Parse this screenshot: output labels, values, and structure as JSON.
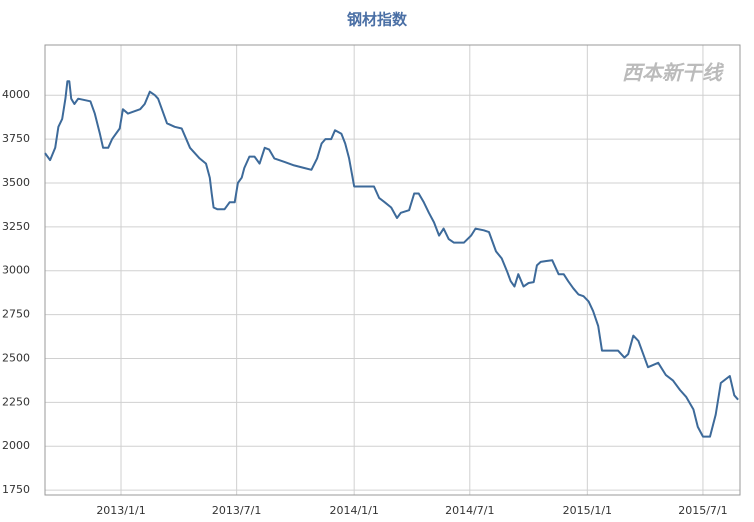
{
  "chart_data": {
    "type": "line",
    "title": "钢材指数",
    "watermark": "西本新干线",
    "x": [
      "2012/9/4",
      "2012/9/12",
      "2012/9/20",
      "2012/9/25",
      "2012/10/1",
      "2012/10/6",
      "2012/10/9",
      "2012/10/12",
      "2012/10/15",
      "2012/10/20",
      "2012/10/26",
      "2012/11/14",
      "2012/11/21",
      "2012/11/29",
      "2012/12/4",
      "2012/12/12",
      "2012/12/18",
      "2012/12/30",
      "2013/1/4",
      "2013/1/12",
      "2013/1/31",
      "2013/2/7",
      "2013/2/15",
      "2013/2/23",
      "2013/2/28",
      "2013/3/6",
      "2013/3/14",
      "2013/3/26",
      "2013/4/6",
      "2013/4/12",
      "2013/4/19",
      "2013/5/4",
      "2013/5/14",
      "2013/5/20",
      "2013/5/23",
      "2013/5/26",
      "2013/6/1",
      "2013/6/12",
      "2013/6/20",
      "2013/6/28",
      "2013/7/3",
      "2013/7/9",
      "2013/7/13",
      "2013/7/21",
      "2013/7/29",
      "2013/8/6",
      "2013/8/14",
      "2013/8/21",
      "2013/8/29",
      "2013/9/14",
      "2013/9/29",
      "2013/10/15",
      "2013/10/26",
      "2013/11/4",
      "2013/11/11",
      "2013/11/17",
      "2013/11/26",
      "2013/12/2",
      "2013/12/12",
      "2013/12/18",
      "2013/12/24",
      "2014/1/1",
      "2014/2/1",
      "2014/2/9",
      "2014/2/18",
      "2014/2/28",
      "2014/3/9",
      "2014/3/15",
      "2014/3/28",
      "2014/4/5",
      "2014/4/12",
      "2014/4/20",
      "2014/4/28",
      "2014/5/6",
      "2014/5/14",
      "2014/5/21",
      "2014/5/29",
      "2014/6/6",
      "2014/6/22",
      "2014/7/3",
      "2014/7/10",
      "2014/7/23",
      "2014/7/31",
      "2014/8/11",
      "2014/8/20",
      "2014/8/28",
      "2014/9/3",
      "2014/9/9",
      "2014/9/15",
      "2014/9/23",
      "2014/10/1",
      "2014/10/9",
      "2014/10/14",
      "2014/10/20",
      "2014/10/29",
      "2014/11/7",
      "2014/11/17",
      "2014/11/25",
      "2014/12/2",
      "2014/12/10",
      "2014/12/18",
      "2014/12/26",
      "2015/1/3",
      "2015/1/10",
      "2015/1/18",
      "2015/1/24",
      "2015/2/18",
      "2015/2/28",
      "2015/3/6",
      "2015/3/14",
      "2015/3/22",
      "2015/3/29",
      "2015/4/6",
      "2015/4/22",
      "2015/5/4",
      "2015/5/15",
      "2015/5/26",
      "2015/6/5",
      "2015/6/16",
      "2015/6/23",
      "2015/7/1",
      "2015/7/12",
      "2015/7/21",
      "2015/7/29",
      "2015/8/12",
      "2015/8/19",
      "2015/8/25"
    ],
    "series": [
      {
        "name": "钢材指数",
        "color": "#3d6a9a",
        "values": [
          3670,
          3630,
          3700,
          3820,
          3865,
          3980,
          4080,
          4080,
          3980,
          3950,
          3980,
          3965,
          3895,
          3780,
          3700,
          3700,
          3750,
          3810,
          3920,
          3895,
          3920,
          3950,
          4020,
          4000,
          3980,
          3920,
          3840,
          3820,
          3810,
          3760,
          3700,
          3640,
          3610,
          3530,
          3440,
          3360,
          3350,
          3350,
          3390,
          3390,
          3500,
          3530,
          3585,
          3650,
          3650,
          3610,
          3700,
          3690,
          3640,
          3620,
          3600,
          3585,
          3575,
          3640,
          3725,
          3750,
          3750,
          3800,
          3780,
          3725,
          3640,
          3480,
          3480,
          3415,
          3390,
          3360,
          3300,
          3330,
          3345,
          3440,
          3440,
          3390,
          3330,
          3275,
          3200,
          3240,
          3180,
          3160,
          3160,
          3200,
          3240,
          3230,
          3220,
          3110,
          3070,
          3000,
          2940,
          2910,
          2980,
          2910,
          2930,
          2935,
          3030,
          3050,
          3055,
          3060,
          2980,
          2980,
          2940,
          2900,
          2865,
          2855,
          2825,
          2770,
          2685,
          2545,
          2545,
          2505,
          2525,
          2630,
          2600,
          2530,
          2450,
          2475,
          2405,
          2375,
          2320,
          2280,
          2210,
          2110,
          2055,
          2055,
          2180,
          2360,
          2400,
          2290,
          2265
        ]
      }
    ],
    "xlim": [
      "2012/9/4",
      "2015/8/28"
    ],
    "xticks": [
      "2013/1/1",
      "2013/7/1",
      "2014/1/1",
      "2014/7/1",
      "2015/1/1",
      "2015/7/1"
    ],
    "ylim": [
      1722,
      4286
    ],
    "yticks": [
      1750,
      2000,
      2250,
      2500,
      2750,
      3000,
      3250,
      3500,
      3750,
      4000
    ],
    "grid": true
  }
}
